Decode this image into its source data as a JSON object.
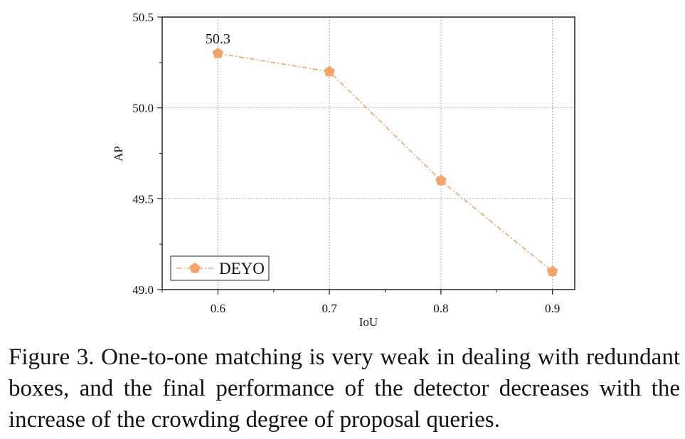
{
  "chart_data": {
    "type": "line",
    "title": "",
    "xlabel": "IoU",
    "ylabel": "AP",
    "xlim": [
      0.55,
      0.92
    ],
    "ylim": [
      49.0,
      50.5
    ],
    "xticks": [
      0.6,
      0.7,
      0.8,
      0.9
    ],
    "yticks": [
      49.0,
      49.5,
      50.0,
      50.5
    ],
    "xtick_labels": [
      "0.6",
      "0.7",
      "0.8",
      "0.9"
    ],
    "ytick_labels": [
      "49.0",
      "49.5",
      "50.0",
      "50.5"
    ],
    "grid": true,
    "legend_position": "bottom-left",
    "series": [
      {
        "name": "DEYO",
        "x": [
          0.6,
          0.7,
          0.8,
          0.9
        ],
        "values": [
          50.3,
          50.2,
          49.6,
          49.1
        ],
        "color": "#F2A46A",
        "marker": "pentagon",
        "linestyle": "dash-dot"
      }
    ],
    "annotations": [
      {
        "text": "50.3",
        "x": 0.6,
        "y": 50.3
      }
    ]
  },
  "caption": "Figure 3. One-to-one matching is very weak in dealing with redundant boxes, and the final performance of the detector decreases with the increase of the crowding degree of proposal queries."
}
